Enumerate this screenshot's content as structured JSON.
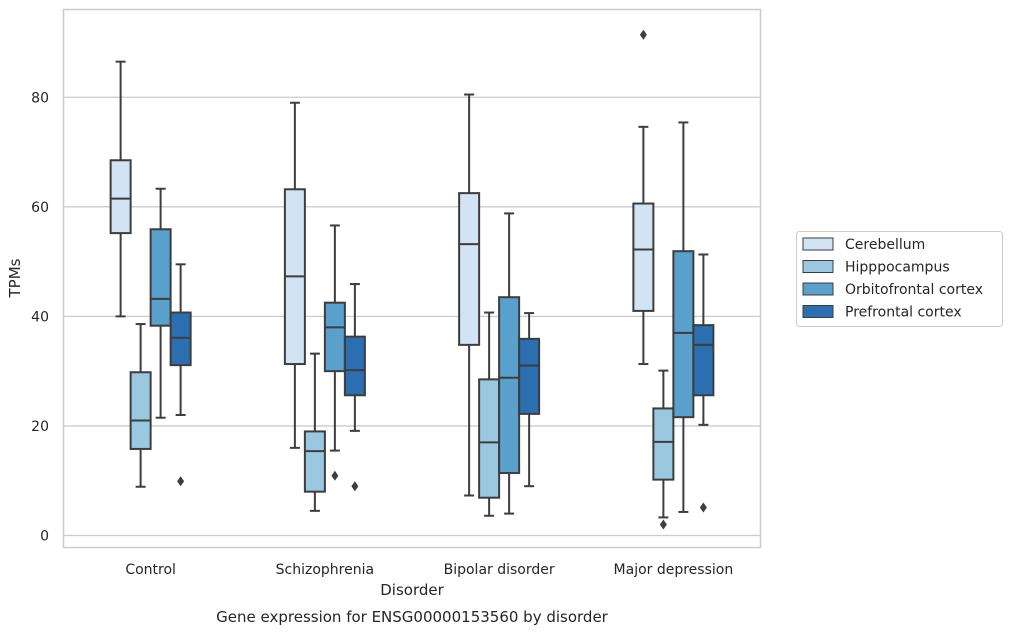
{
  "chart_data": {
    "type": "boxplot",
    "title": "",
    "caption": "Gene expression for ENSG00000153560 by disorder",
    "xlabel": "Disorder",
    "ylabel": "TPMs",
    "ylim": [
      -2,
      96
    ],
    "yticks": [
      0,
      20,
      40,
      60,
      80
    ],
    "grid": "horizontal",
    "legend_position": "right",
    "categories": [
      "Control",
      "Schizophrenia",
      "Bipolar disorder",
      "Major depression"
    ],
    "series": [
      {
        "name": "Cerebellum",
        "color": "#d2e3f3",
        "boxes": [
          {
            "whislo": 40,
            "q1": 55.2,
            "med": 61.5,
            "q3": 68.5,
            "whishi": 86.5,
            "fliers": []
          },
          {
            "whislo": 16,
            "q1": 31.3,
            "med": 47.3,
            "q3": 63.2,
            "whishi": 79,
            "fliers": []
          },
          {
            "whislo": 7.3,
            "q1": 34.8,
            "med": 53.2,
            "q3": 62.5,
            "whishi": 80.5,
            "fliers": []
          },
          {
            "whislo": 31.3,
            "q1": 41,
            "med": 52.2,
            "q3": 60.6,
            "whishi": 74.6,
            "fliers": [
              91.4
            ]
          }
        ]
      },
      {
        "name": "Hipppocampus",
        "color": "#9ac8e0",
        "boxes": [
          {
            "whislo": 8.9,
            "q1": 15.8,
            "med": 21,
            "q3": 29.8,
            "whishi": 38.6,
            "fliers": []
          },
          {
            "whislo": 4.5,
            "q1": 8,
            "med": 15.4,
            "q3": 19,
            "whishi": 33.2,
            "fliers": []
          },
          {
            "whislo": 3.6,
            "q1": 6.9,
            "med": 17,
            "q3": 28.5,
            "whishi": 40.7,
            "fliers": []
          },
          {
            "whislo": 3.3,
            "q1": 10.2,
            "med": 17.1,
            "q3": 23.2,
            "whishi": 30.1,
            "fliers": [
              2
            ]
          }
        ]
      },
      {
        "name": "Orbitofrontal cortex",
        "color": "#5aa0cd",
        "boxes": [
          {
            "whislo": 21.5,
            "q1": 38.3,
            "med": 43.2,
            "q3": 55.9,
            "whishi": 63.3,
            "fliers": []
          },
          {
            "whislo": 15.5,
            "q1": 30,
            "med": 38,
            "q3": 42.5,
            "whishi": 56.6,
            "fliers": [
              10.9
            ]
          },
          {
            "whislo": 4,
            "q1": 11.4,
            "med": 28.8,
            "q3": 43.5,
            "whishi": 58.8,
            "fliers": []
          },
          {
            "whislo": 4.3,
            "q1": 21.6,
            "med": 37,
            "q3": 51.9,
            "whishi": 75.4,
            "fliers": []
          }
        ]
      },
      {
        "name": "Prefrontal cortex",
        "color": "#2c6fb1",
        "boxes": [
          {
            "whislo": 22,
            "q1": 31.1,
            "med": 36.1,
            "q3": 40.7,
            "whishi": 49.5,
            "fliers": [
              9.9
            ]
          },
          {
            "whislo": 19.1,
            "q1": 25.6,
            "med": 30.2,
            "q3": 36.3,
            "whishi": 45.9,
            "fliers": [
              9
            ]
          },
          {
            "whislo": 9,
            "q1": 22.2,
            "med": 31,
            "q3": 35.9,
            "whishi": 40.6,
            "fliers": []
          },
          {
            "whislo": 20.2,
            "q1": 25.6,
            "med": 34.8,
            "q3": 38.4,
            "whishi": 51.3,
            "fliers": [
              5.1
            ]
          }
        ]
      }
    ]
  }
}
